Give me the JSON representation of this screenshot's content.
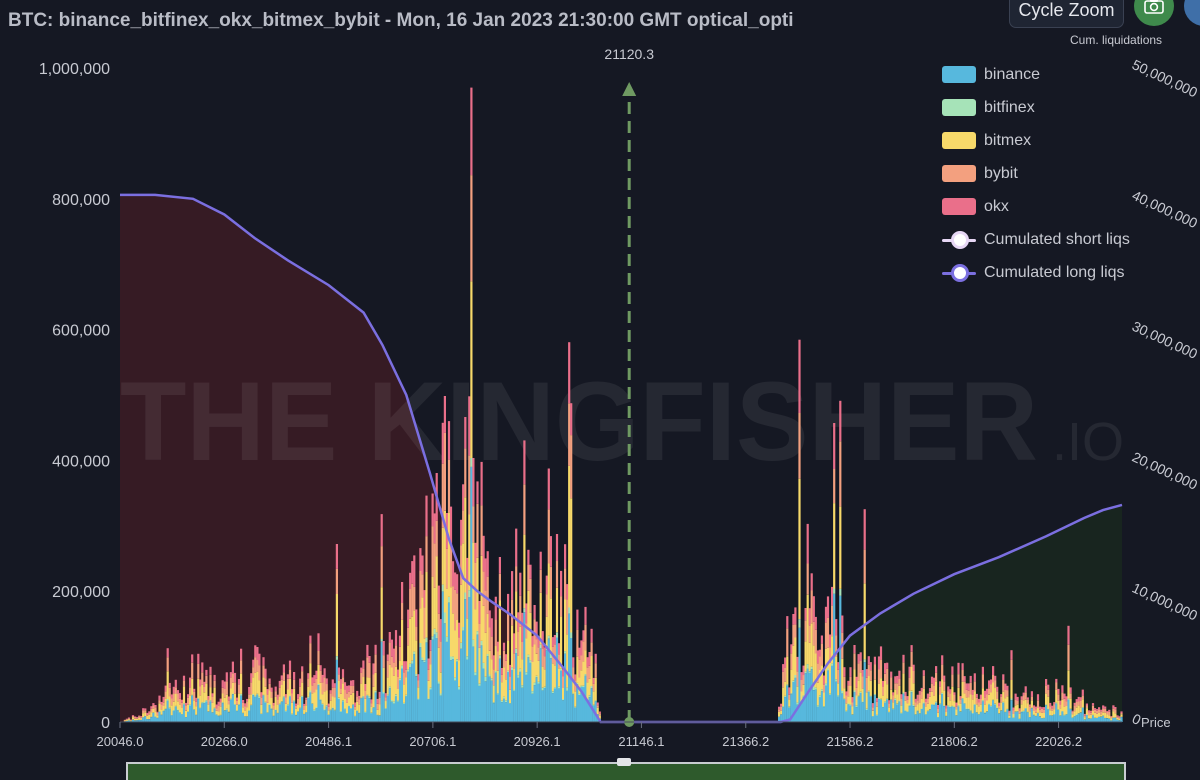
{
  "title": "BTC: binance_bitfinex_okx_bitmex_bybit - Mon, 16 Jan 2023 21:30:00 GMT optical_opti",
  "toolbar": {
    "cycle_zoom_label": "Cycle Zoom",
    "camera_icon": "camera-icon",
    "cum_liquidations_label": "Cum. liquidations"
  },
  "watermark": {
    "main": "THE KINGFISHER",
    "suffix": ".IO"
  },
  "colors": {
    "background": "#151823",
    "binance": "#57b8dd",
    "bitfinex": "#a6e3b8",
    "bitmex": "#f7d96a",
    "bybit": "#f3a07f",
    "okx": "#ea6f8a",
    "cumulated_line": "#7b6fe0",
    "short_area": "#3a1c25",
    "long_area": "#18271f",
    "current_price_marker": "#6f9a62"
  },
  "chart_data": {
    "type": "bar",
    "stacked": true,
    "x_label": "Price",
    "x_range": [
      20046.0,
      22160.0
    ],
    "x_ticks": [
      "20046.0",
      "20266.0",
      "20486.1",
      "20706.1",
      "20926.1",
      "21146.1",
      "21366.2",
      "21586.2",
      "21806.2",
      "22026.2"
    ],
    "y_left_range": [
      0,
      1000000
    ],
    "y_left_ticks": [
      "0",
      "200,000",
      "400,000",
      "600,000",
      "800,000",
      "1,000,000"
    ],
    "y_right_range": [
      0,
      50000000
    ],
    "y_right_ticks": [
      "0",
      "10,000,000",
      "20,000,000",
      "30,000,000",
      "40,000,000",
      "50,000,000"
    ],
    "current_price": 21120.3,
    "current_price_label": "21120.3",
    "legend_position": "top-right",
    "legend": [
      "binance",
      "bitfinex",
      "bitmex",
      "bybit",
      "okx",
      "Cumulated short liqs",
      "Cumulated long liqs"
    ],
    "series_names": [
      "binance",
      "bitfinex",
      "bitmex",
      "bybit",
      "okx"
    ],
    "bars_profile": [
      {
        "price": 20046,
        "total": 0
      },
      {
        "price": 20100,
        "total": 20000
      },
      {
        "price": 20150,
        "total": 50000
      },
      {
        "price": 20200,
        "total": 80000
      },
      {
        "price": 20266,
        "total": 70000
      },
      {
        "price": 20330,
        "total": 85000
      },
      {
        "price": 20400,
        "total": 70000
      },
      {
        "price": 20486,
        "total": 75000
      },
      {
        "price": 20560,
        "total": 95000
      },
      {
        "price": 20630,
        "total": 150000
      },
      {
        "price": 20680,
        "total": 250000
      },
      {
        "price": 20706,
        "total": 300000
      },
      {
        "price": 20740,
        "total": 380000
      },
      {
        "price": 20770,
        "total": 450000
      },
      {
        "price": 20800,
        "total": 320000
      },
      {
        "price": 20840,
        "total": 180000
      },
      {
        "price": 20870,
        "total": 200000
      },
      {
        "price": 20900,
        "total": 330000
      },
      {
        "price": 20926,
        "total": 300000
      },
      {
        "price": 20960,
        "total": 240000
      },
      {
        "price": 21000,
        "total": 180000
      },
      {
        "price": 21040,
        "total": 130000
      },
      {
        "price": 21060,
        "total": 0
      },
      {
        "price": 21430,
        "total": 0
      },
      {
        "price": 21450,
        "total": 130000
      },
      {
        "price": 21500,
        "total": 200000
      },
      {
        "price": 21540,
        "total": 180000
      },
      {
        "price": 21586,
        "total": 120000
      },
      {
        "price": 21650,
        "total": 90000
      },
      {
        "price": 21720,
        "total": 80000
      },
      {
        "price": 21806,
        "total": 70000
      },
      {
        "price": 21900,
        "total": 60000
      },
      {
        "price": 22026,
        "total": 50000
      },
      {
        "price": 22100,
        "total": 30000
      },
      {
        "price": 22160,
        "total": 20000
      }
    ],
    "composition": {
      "binance": 0.35,
      "bitfinex": 0.02,
      "bitmex": 0.28,
      "bybit": 0.2,
      "okx": 0.15
    },
    "cumulated_short_liqs": {
      "name": "Cumulated short liqs",
      "points": [
        [
          20046,
          40300000
        ],
        [
          20120,
          40300000
        ],
        [
          20200,
          40000000
        ],
        [
          20266,
          38800000
        ],
        [
          20330,
          37000000
        ],
        [
          20400,
          35300000
        ],
        [
          20486,
          33400000
        ],
        [
          20560,
          31300000
        ],
        [
          20600,
          28800000
        ],
        [
          20650,
          25000000
        ],
        [
          20700,
          19000000
        ],
        [
          20740,
          14000000
        ],
        [
          20770,
          11000000
        ],
        [
          20800,
          10000000
        ],
        [
          20830,
          9200000
        ],
        [
          20870,
          8200000
        ],
        [
          20926,
          6600000
        ],
        [
          20980,
          4200000
        ],
        [
          21020,
          2300000
        ],
        [
          21060,
          0
        ],
        [
          21120,
          0
        ]
      ]
    },
    "cumulated_long_liqs": {
      "name": "Cumulated long liqs",
      "points": [
        [
          21120,
          0
        ],
        [
          21440,
          0
        ],
        [
          21460,
          200000
        ],
        [
          21500,
          2400000
        ],
        [
          21540,
          4500000
        ],
        [
          21586,
          6600000
        ],
        [
          21650,
          8300000
        ],
        [
          21720,
          9800000
        ],
        [
          21806,
          11300000
        ],
        [
          21900,
          12600000
        ],
        [
          22000,
          14200000
        ],
        [
          22080,
          15600000
        ],
        [
          22120,
          16200000
        ],
        [
          22160,
          16600000
        ]
      ]
    }
  }
}
